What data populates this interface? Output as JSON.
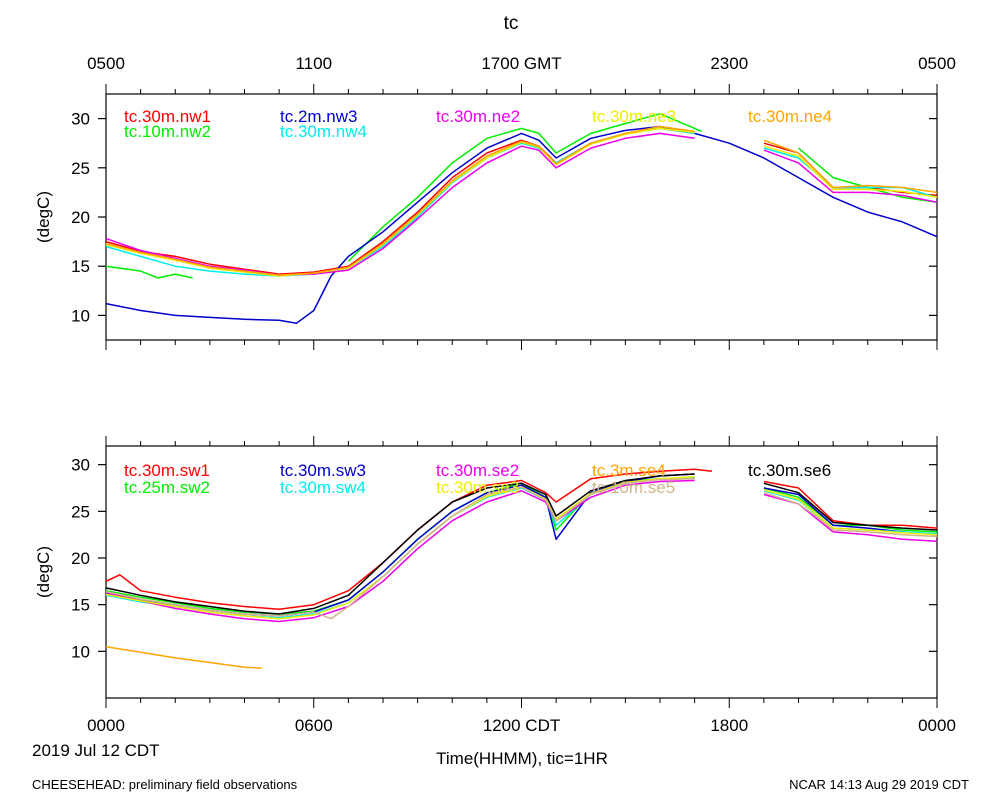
{
  "header": {
    "title": "tc",
    "gmt_ticks": [
      "0500",
      "1100",
      "1700 GMT",
      "2300",
      "0500"
    ]
  },
  "footer": {
    "date_label": "2019 Jul 12 CDT",
    "xlabel": "Time(HHMM), tic=1HR",
    "left_note": "CHEESEHEAD: preliminary field observations",
    "right_note": "NCAR 14:13 Aug 29 2019 CDT"
  },
  "chart_data": [
    {
      "type": "line",
      "title": "tc",
      "ylabel": "(degC)",
      "xlim": [
        0,
        24
      ],
      "ylim": [
        7.5,
        32.5
      ],
      "y_ticks": [
        10,
        15,
        20,
        25,
        30
      ],
      "x_tick_labels": [
        "0000",
        "0600",
        "1200 CDT",
        "1800",
        "0000"
      ],
      "series": [
        {
          "name": "tc.30m.nw1",
          "color": "#ff0000",
          "x": [
            0,
            1,
            2,
            3,
            4,
            5,
            6,
            7,
            8,
            9,
            10,
            11,
            12,
            12.5,
            13,
            14,
            15,
            16,
            17,
            18,
            19,
            20,
            21,
            22,
            23,
            24
          ],
          "y": [
            17.5,
            16.5,
            16,
            15.2,
            14.7,
            14.2,
            14.4,
            15,
            17.5,
            20.5,
            24,
            26.5,
            27.8,
            27.2,
            25.5,
            27.5,
            28.5,
            29,
            28.5,
            null,
            27.5,
            26.5,
            23,
            23,
            22.5,
            22.2
          ]
        },
        {
          "name": "tc.10m.nw2",
          "color": "#00ee00",
          "x": [
            0,
            1,
            1.5,
            2,
            2.5,
            3,
            4,
            5,
            6,
            7,
            8,
            9,
            10,
            11,
            12,
            12.5,
            13,
            14,
            15,
            16,
            17,
            17.2,
            18,
            19,
            20,
            21,
            22,
            23,
            24
          ],
          "y": [
            15,
            14.5,
            13.8,
            14.2,
            13.8,
            null,
            null,
            null,
            null,
            15.5,
            19,
            22,
            25.5,
            28,
            29,
            28.5,
            26.5,
            28.5,
            29.5,
            30.5,
            29,
            28.7,
            null,
            null,
            27,
            24,
            23,
            22,
            21.5
          ]
        },
        {
          "name": "tc.2m.nw3",
          "color": "#0000cc",
          "x": [
            0,
            1,
            2,
            3,
            4,
            5,
            5.5,
            6,
            6.5,
            7,
            8,
            9,
            10,
            11,
            12,
            12.5,
            13,
            14,
            15,
            16,
            17,
            18,
            19,
            20,
            21,
            22,
            23,
            24
          ],
          "y": [
            11.2,
            10.5,
            10,
            9.8,
            9.6,
            9.5,
            9.2,
            10.5,
            14,
            16,
            18.5,
            21.5,
            24.5,
            27,
            28.5,
            27.8,
            26,
            28,
            28.8,
            29.2,
            28.5,
            27.5,
            26,
            24,
            22,
            20.5,
            19.5,
            18
          ]
        },
        {
          "name": "tc.30m.nw4",
          "color": "#00eeee",
          "x": [
            0,
            1,
            2,
            3,
            4,
            5,
            6,
            7,
            8,
            9,
            10,
            11,
            12,
            12.5,
            13,
            14,
            15,
            16,
            17,
            18,
            19,
            20,
            21,
            22,
            23,
            24
          ],
          "y": [
            17,
            16,
            15,
            14.5,
            14.2,
            14,
            14.2,
            14.8,
            17,
            20,
            23.5,
            26,
            27.5,
            27,
            25.5,
            27.5,
            28.5,
            29,
            28.5,
            null,
            27,
            26,
            23,
            23,
            23,
            22
          ]
        },
        {
          "name": "tc.30m.ne2",
          "color": "#ee00ee",
          "x": [
            0,
            1,
            2,
            3,
            4,
            5,
            6,
            7,
            8,
            9,
            10,
            11,
            12,
            12.5,
            13,
            14,
            15,
            16,
            17,
            18,
            19,
            20,
            21,
            22,
            23,
            24
          ],
          "y": [
            17.8,
            16.6,
            15.8,
            15,
            14.6,
            14.1,
            14.2,
            14.6,
            16.8,
            19.8,
            23,
            25.5,
            27.2,
            26.8,
            25,
            27,
            28,
            28.5,
            28,
            null,
            26.8,
            25.5,
            22.5,
            22.5,
            22.2,
            21.5
          ]
        },
        {
          "name": "tc.30m.ne3",
          "color": "#eeee00",
          "x": [
            0,
            1,
            2,
            3,
            4,
            5,
            6,
            7,
            8,
            9,
            10,
            11,
            12,
            12.5,
            13,
            14,
            15,
            16,
            17,
            18,
            19,
            20,
            21,
            22,
            23,
            24
          ],
          "y": [
            17.2,
            16.3,
            15.6,
            14.8,
            14.4,
            14,
            14.3,
            14.8,
            17.2,
            20.2,
            23.6,
            26,
            27.6,
            27.1,
            25.3,
            27.4,
            28.4,
            29,
            28.6,
            null,
            27.2,
            26.2,
            22.8,
            22.8,
            22.6,
            22
          ]
        },
        {
          "name": "tc.30m.ne4",
          "color": "#ffa500",
          "x": [
            0,
            1,
            2,
            3,
            4,
            5,
            6,
            7,
            8,
            9,
            10,
            11,
            12,
            12.5,
            13,
            14,
            15,
            16,
            17,
            18,
            19,
            20,
            21,
            22,
            23,
            24
          ],
          "y": [
            17.3,
            16.4,
            15.7,
            14.9,
            14.5,
            14.1,
            14.3,
            14.9,
            17.3,
            20.3,
            23.7,
            26.2,
            27.7,
            27.2,
            25.4,
            27.5,
            28.5,
            29.2,
            28.7,
            null,
            27.8,
            26.5,
            23,
            23.2,
            23,
            22.5
          ]
        }
      ]
    },
    {
      "type": "line",
      "ylabel": "(degC)",
      "xlim": [
        0,
        24
      ],
      "ylim": [
        5.0,
        32.0
      ],
      "y_ticks": [
        10,
        15,
        20,
        25,
        30
      ],
      "x_tick_labels": [
        "0000",
        "0600",
        "1200 CDT",
        "1800",
        "0000"
      ],
      "series": [
        {
          "name": "tc.30m.sw1",
          "color": "#ff0000",
          "x": [
            0,
            0.4,
            1,
            2,
            3,
            4,
            5,
            6,
            7,
            8,
            9,
            10,
            11,
            12,
            12.7,
            13,
            14,
            15,
            16,
            17,
            17.5,
            18,
            19,
            20,
            21,
            22,
            23,
            24
          ],
          "y": [
            17.5,
            18.2,
            16.5,
            15.8,
            15.2,
            14.8,
            14.5,
            15,
            16.5,
            19.5,
            23,
            26,
            27.8,
            28.3,
            27,
            26,
            28.5,
            29,
            29.3,
            29.5,
            29.3,
            null,
            28.2,
            27.5,
            24,
            23.5,
            23.5,
            23.2
          ]
        },
        {
          "name": "tc.25m.sw2",
          "color": "#00ee00",
          "x": [
            0,
            1,
            2,
            3,
            4,
            5,
            6,
            7,
            8,
            9,
            10,
            11,
            12,
            12.7,
            13,
            14,
            15,
            16,
            17,
            18,
            19,
            20,
            21,
            22,
            23,
            24
          ],
          "y": [
            16.5,
            15.8,
            15.2,
            14.6,
            14.2,
            14,
            14.3,
            15.5,
            18.5,
            22,
            25,
            27,
            28,
            26.5,
            23,
            27,
            28.2,
            28.5,
            28.5,
            null,
            27.5,
            26.5,
            23.5,
            23.5,
            23,
            22.8
          ]
        },
        {
          "name": "tc.30m.sw3",
          "color": "#0000cc",
          "x": [
            0,
            1,
            2,
            3,
            4,
            5,
            6,
            7,
            8,
            9,
            10,
            11,
            12,
            12.7,
            13,
            14,
            15,
            16,
            17,
            18,
            19,
            20,
            21,
            22,
            23,
            24
          ],
          "y": [
            16.2,
            15.5,
            15,
            14.4,
            14,
            13.8,
            14.2,
            15.5,
            18.5,
            22,
            25,
            27,
            27.8,
            26.5,
            22,
            27,
            28.2,
            28.8,
            29,
            null,
            27.5,
            26.8,
            23.5,
            23.2,
            22.8,
            22.5
          ]
        },
        {
          "name": "tc.30m.sw4",
          "color": "#00eeee",
          "x": [
            0,
            1,
            2,
            3,
            4,
            5,
            6,
            7,
            8,
            9,
            10,
            11,
            12,
            12.7,
            13,
            14,
            15,
            16,
            17,
            18,
            19,
            20,
            21,
            22,
            23,
            24
          ],
          "y": [
            16,
            15.3,
            14.8,
            14.2,
            13.8,
            13.6,
            14,
            15.2,
            18,
            21.5,
            24.5,
            26.5,
            27.5,
            26.2,
            23.5,
            26.8,
            28,
            28.5,
            28.6,
            null,
            27.2,
            26.2,
            23.2,
            23,
            22.8,
            22.6
          ]
        },
        {
          "name": "tc.30m.se2",
          "color": "#ee00ee",
          "x": [
            0,
            1,
            2,
            3,
            4,
            5,
            6,
            7,
            8,
            9,
            10,
            11,
            12,
            12.7,
            13,
            14,
            15,
            16,
            17,
            18,
            19,
            20,
            21,
            22,
            23,
            24
          ],
          "y": [
            16.3,
            15.4,
            14.6,
            14,
            13.5,
            13.2,
            13.6,
            14.8,
            17.5,
            21,
            24,
            26,
            27.2,
            26,
            24,
            26.5,
            27.8,
            28.2,
            28.3,
            null,
            26.8,
            25.8,
            22.8,
            22.5,
            22,
            21.8
          ]
        },
        {
          "name": "tc.30m.se3",
          "color": "#eeee00",
          "x": [
            0,
            1,
            2,
            3,
            4,
            5,
            6,
            7,
            8,
            9,
            10,
            11,
            12,
            12.7,
            13,
            14,
            15,
            16,
            17,
            18,
            19,
            20,
            21,
            22,
            23,
            24
          ],
          "y": [
            16.1,
            15.4,
            14.8,
            14.2,
            13.8,
            13.5,
            13.9,
            15.2,
            18,
            21.5,
            24.5,
            26.6,
            27.6,
            26.3,
            24.2,
            26.9,
            28.1,
            28.5,
            28.7,
            null,
            27.3,
            26.3,
            23.2,
            23,
            22.7,
            22.5
          ]
        },
        {
          "name": "tc.3m.se4",
          "color": "#ffa500",
          "x": [
            0,
            1,
            2,
            3,
            4,
            4.5
          ],
          "y": [
            10.5,
            9.9,
            9.3,
            8.8,
            8.3,
            8.2
          ]
        },
        {
          "name": "tc.10m.se5",
          "color": "#d2b48c",
          "x": [
            0,
            1,
            2,
            3,
            4,
            5,
            6,
            6.5,
            7,
            8,
            9,
            10,
            11,
            12,
            12.7,
            13,
            14,
            15,
            16,
            17,
            18,
            19,
            20,
            20.5,
            21,
            22,
            23,
            24
          ],
          "y": [
            16.4,
            15.6,
            15,
            14.4,
            14,
            13.8,
            14.2,
            13.5,
            14.8,
            18,
            21.5,
            24.5,
            26.8,
            27.6,
            26.2,
            24,
            26.8,
            28,
            28.4,
            28.5,
            null,
            27,
            25.8,
            24.5,
            23,
            22.8,
            22.5,
            22.3
          ]
        },
        {
          "name": "tc.30m.se6",
          "color": "#000000",
          "x": [
            0,
            1,
            2,
            3,
            4,
            5,
            6,
            7,
            8,
            9,
            10,
            11,
            12,
            12.7,
            13,
            14,
            15,
            16,
            17,
            18,
            19,
            20,
            21,
            22,
            23,
            24
          ],
          "y": [
            16.8,
            16,
            15.3,
            14.8,
            14.3,
            14,
            14.6,
            16,
            19.5,
            23,
            26,
            27.5,
            28,
            26.8,
            24.5,
            27.2,
            28.3,
            28.8,
            29,
            null,
            28,
            27,
            23.8,
            23.5,
            23.2,
            23
          ]
        }
      ]
    }
  ]
}
